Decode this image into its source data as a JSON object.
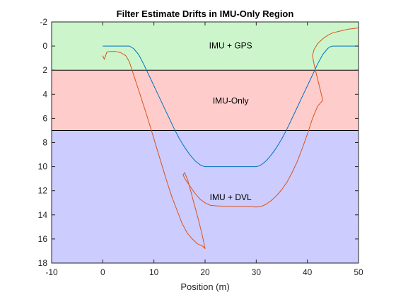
{
  "chart_data": {
    "type": "line",
    "title": "Filter Estimate Drifts in IMU-Only Region",
    "xlabel": "Position (m)",
    "ylabel": "",
    "xlim": [
      -10,
      50
    ],
    "ylim": [
      -2,
      18
    ],
    "y_reversed": true,
    "x_ticks": [
      -10,
      0,
      10,
      20,
      30,
      40,
      50
    ],
    "y_ticks": [
      -2,
      0,
      2,
      4,
      6,
      8,
      10,
      12,
      14,
      16,
      18
    ],
    "grid": false,
    "regions": [
      {
        "label": "IMU + GPS",
        "y_from": -2,
        "y_to": 2,
        "color": "#ccf5cc",
        "label_x": 25,
        "label_y": 0
      },
      {
        "label": "IMU-Only",
        "y_from": 2,
        "y_to": 7,
        "color": "#ffcccc",
        "label_x": 25,
        "label_y": 4.6
      },
      {
        "label": "IMU + DVL",
        "y_from": 7,
        "y_to": 18,
        "color": "#ccccff",
        "label_x": 25,
        "label_y": 12.6
      }
    ],
    "series": [
      {
        "color": "#0072bd",
        "x": [
          0,
          5.2,
          6,
          7,
          8,
          9,
          10,
          11,
          12,
          13,
          14,
          15,
          16,
          17,
          18,
          19,
          19.5,
          20,
          30,
          30.5,
          31,
          32,
          33,
          34,
          35,
          36,
          37,
          38,
          39,
          40,
          41,
          42,
          43,
          44,
          44.5,
          45,
          50
        ],
        "y": [
          0,
          0,
          0.2,
          0.7,
          1.5,
          2.4,
          3.3,
          4.2,
          5.1,
          6.0,
          6.9,
          7.7,
          8.4,
          9.0,
          9.5,
          9.85,
          9.95,
          10,
          10,
          9.95,
          9.85,
          9.5,
          9.0,
          8.4,
          7.7,
          6.9,
          6.0,
          5.1,
          4.2,
          3.3,
          2.4,
          1.5,
          0.7,
          0.2,
          0.05,
          0,
          0
        ]
      },
      {
        "color": "#d95319",
        "x": [
          0,
          0.3,
          0.8,
          1.5,
          2.5,
          3.5,
          4.5,
          5.2,
          5.8,
          6.5,
          7.5,
          8.5,
          9.5,
          10.5,
          11.5,
          12.5,
          13.5,
          14.5,
          15.5,
          16.5,
          17.5,
          18.5,
          19.5,
          20,
          19.4,
          18.7,
          18,
          17.3,
          16.6,
          16,
          15.7,
          16.2,
          17,
          18,
          19,
          20,
          21,
          22,
          24,
          26,
          28,
          30,
          31,
          32,
          33,
          34,
          35,
          36,
          37,
          38,
          39,
          40,
          41,
          42,
          43,
          42.5,
          41.8,
          41.3,
          41,
          41.3,
          42,
          43,
          44,
          45,
          46,
          47,
          48,
          49,
          50
        ],
        "y": [
          0.8,
          1.1,
          0.5,
          0.45,
          0.45,
          0.55,
          0.8,
          1.3,
          2.1,
          3.0,
          4.3,
          5.6,
          7.0,
          8.4,
          9.8,
          11.2,
          12.5,
          13.6,
          14.7,
          15.5,
          16.0,
          16.4,
          16.6,
          16.8,
          15.6,
          14.4,
          13.3,
          12.2,
          11.1,
          10.5,
          10.7,
          11.1,
          11.6,
          12.2,
          12.7,
          13.0,
          13.2,
          13.25,
          13.3,
          13.3,
          13.3,
          13.35,
          13.3,
          13.1,
          12.8,
          12.4,
          11.9,
          11.3,
          10.5,
          9.6,
          8.5,
          7.3,
          6.0,
          5.0,
          4.5,
          3.6,
          2.4,
          1.5,
          0.8,
          0.3,
          -0.2,
          -0.6,
          -0.9,
          -1.1,
          -1.2,
          -1.3,
          -1.4,
          -1.45,
          -1.5
        ]
      }
    ]
  }
}
